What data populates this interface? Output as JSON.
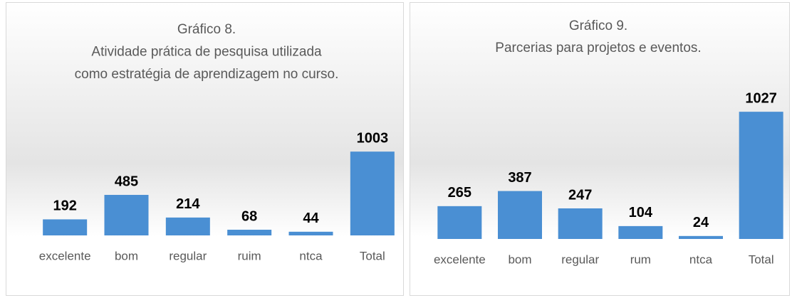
{
  "chart_data": [
    {
      "type": "bar",
      "title": [
        "Gráfico 8.",
        "Atividade prática de pesquisa utilizada",
        "como estratégia de aprendizagem no curso."
      ],
      "categories": [
        "excelente",
        "bom",
        "regular",
        "ruim",
        "ntca",
        "Total"
      ],
      "values": [
        192,
        485,
        214,
        68,
        44,
        1003
      ],
      "color": "#4a8fd3",
      "ylim": [
        0,
        1200
      ]
    },
    {
      "type": "bar",
      "title": [
        "Gráfico 9.",
        "Parcerias para projetos e eventos."
      ],
      "categories": [
        "excelente",
        "bom",
        "regular",
        "rum",
        "ntca",
        "Total"
      ],
      "values": [
        265,
        387,
        247,
        104,
        24,
        1027
      ],
      "color": "#4a8fd3",
      "ylim": [
        0,
        1200
      ]
    }
  ]
}
